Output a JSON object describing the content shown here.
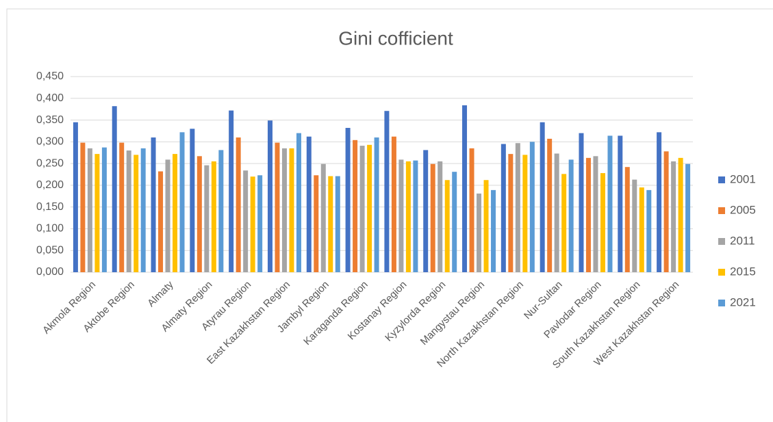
{
  "chart_data": {
    "type": "bar",
    "title": "Gini cofficient",
    "categories": [
      "Akmola Region",
      "Aktobe Region",
      "Almaty",
      "Almaty Region",
      "Atyrau Region",
      "East Kazakhstan Region",
      "Jambyl Region",
      "Karaganda Region",
      "Kostanay Region",
      "Kyzylorda Region",
      "Mangystau Region",
      "North Kazakhstan Region",
      "Nur-Sultan",
      "Pavlodar Region",
      "South Kazakhstan Region",
      "West Kazakhstan Region"
    ],
    "series": [
      {
        "name": "2001",
        "color": "#4472c4",
        "values": [
          0.345,
          0.382,
          0.31,
          0.33,
          0.372,
          0.349,
          0.312,
          0.332,
          0.371,
          0.281,
          0.384,
          0.295,
          0.345,
          0.32,
          0.314,
          0.322
        ]
      },
      {
        "name": "2005",
        "color": "#ed7d31",
        "values": [
          0.298,
          0.298,
          0.232,
          0.267,
          0.31,
          0.298,
          0.223,
          0.304,
          0.312,
          0.249,
          0.285,
          0.272,
          0.307,
          0.263,
          0.242,
          0.278
        ]
      },
      {
        "name": "2011",
        "color": "#a5a5a5",
        "values": [
          0.285,
          0.28,
          0.259,
          0.246,
          0.234,
          0.285,
          0.249,
          0.291,
          0.259,
          0.255,
          0.181,
          0.297,
          0.273,
          0.267,
          0.213,
          0.255
        ]
      },
      {
        "name": "2015",
        "color": "#ffc000",
        "values": [
          0.272,
          0.27,
          0.272,
          0.255,
          0.22,
          0.285,
          0.221,
          0.293,
          0.255,
          0.212,
          0.212,
          0.27,
          0.226,
          0.228,
          0.195,
          0.263
        ]
      },
      {
        "name": "2021",
        "color": "#5b9bd5",
        "values": [
          0.287,
          0.285,
          0.322,
          0.281,
          0.223,
          0.32,
          0.221,
          0.31,
          0.257,
          0.231,
          0.189,
          0.3,
          0.259,
          0.314,
          0.189,
          0.249
        ]
      }
    ],
    "ylim": [
      0,
      0.45
    ],
    "yticks": [
      {
        "value": 0,
        "label": "0,000"
      },
      {
        "value": 0.05,
        "label": "0,050"
      },
      {
        "value": 0.1,
        "label": "0,100"
      },
      {
        "value": 0.15,
        "label": "0,150"
      },
      {
        "value": 0.2,
        "label": "0,200"
      },
      {
        "value": 0.25,
        "label": "0,250"
      },
      {
        "value": 0.3,
        "label": "0,300"
      },
      {
        "value": 0.35,
        "label": "0,350"
      },
      {
        "value": 0.4,
        "label": "0,400"
      },
      {
        "value": 0.45,
        "label": "0,450"
      }
    ],
    "grid": true,
    "legend": "right"
  }
}
